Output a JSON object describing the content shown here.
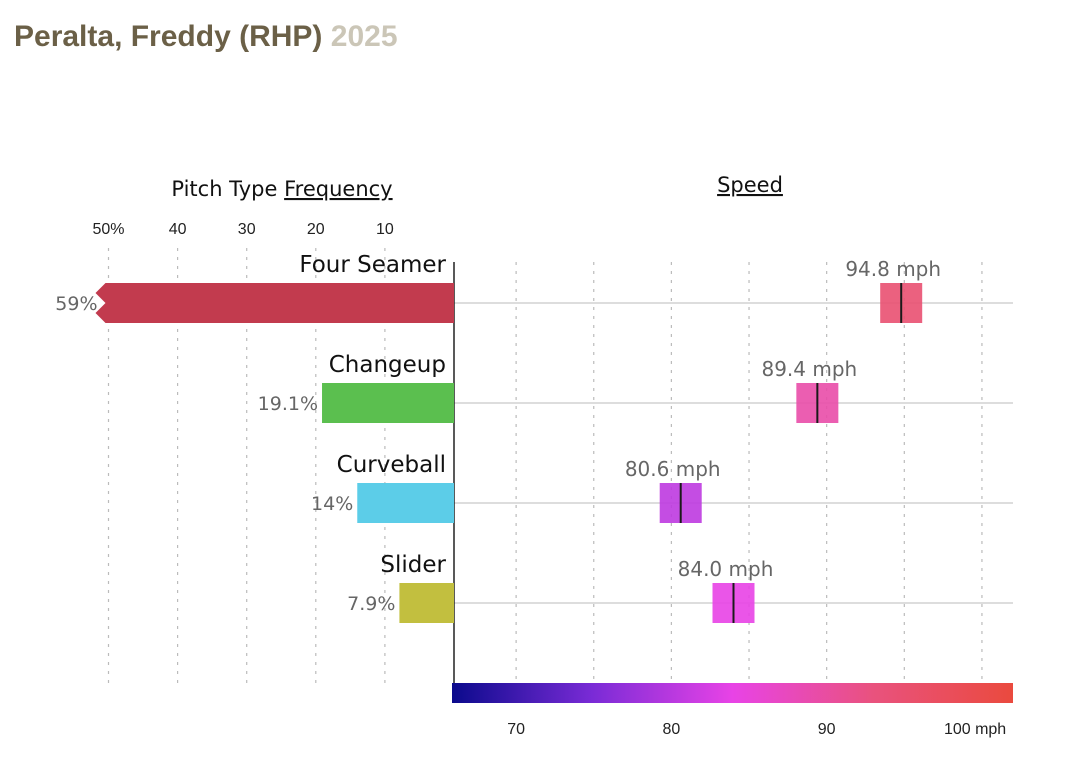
{
  "header": {
    "name": "Peralta, Freddy (RHP)",
    "year": "2025"
  },
  "chart_data": {
    "type": "bar",
    "frequency_title": {
      "prefix": "Pitch Type",
      "underlined": "Frequency"
    },
    "speed_title": "Speed",
    "frequency_ticks": [
      {
        "value": 50,
        "label": "50%"
      },
      {
        "value": 40,
        "label": "40"
      },
      {
        "value": 30,
        "label": "30"
      },
      {
        "value": 20,
        "label": "20"
      },
      {
        "value": 10,
        "label": "10"
      }
    ],
    "speed_ticks": [
      {
        "value": 70,
        "label": "70"
      },
      {
        "value": 80,
        "label": "80"
      },
      {
        "value": 90,
        "label": "90"
      },
      {
        "value": 100,
        "label": "100 mph"
      }
    ],
    "speed_range": [
      66,
      102
    ],
    "speed_gradient_colors": [
      "#0b0a8c",
      "#7a2bd6",
      "#e843e6",
      "#e9527e",
      "#ea4a3e"
    ],
    "pitches": [
      {
        "name": "Four Seamer",
        "frequency": 59,
        "frequency_label": "59%",
        "speed": 94.8,
        "speed_label": "94.8 mph",
        "color": "#c23b4e"
      },
      {
        "name": "Changeup",
        "frequency": 19.1,
        "frequency_label": "19.1%",
        "speed": 89.4,
        "speed_label": "89.4 mph",
        "color": "#5bbf4f"
      },
      {
        "name": "Curveball",
        "frequency": 14,
        "frequency_label": "14%",
        "speed": 80.6,
        "speed_label": "80.6 mph",
        "color": "#5ccde8"
      },
      {
        "name": "Slider",
        "frequency": 7.9,
        "frequency_label": "7.9%",
        "speed": 84.0,
        "speed_label": "84.0 mph",
        "color": "#c2bf3f"
      }
    ]
  }
}
